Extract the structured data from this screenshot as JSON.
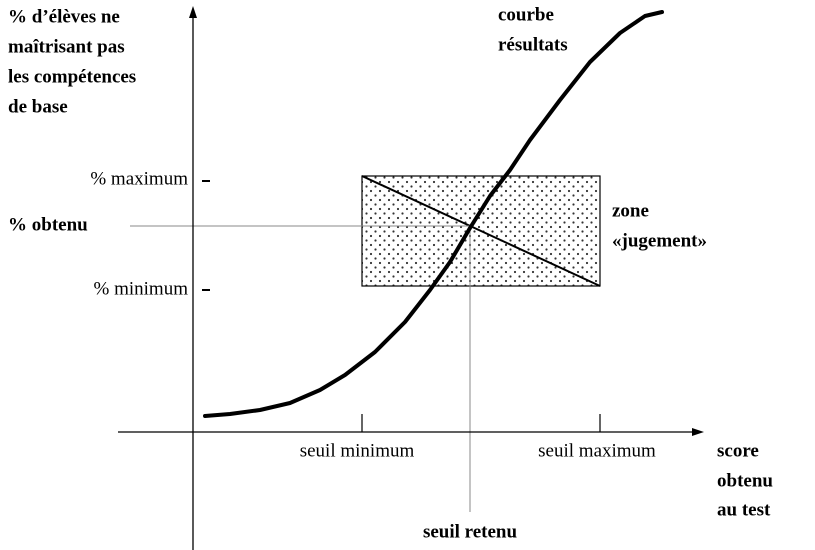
{
  "y_axis_label": [
    "% d’élèves ne",
    "maîtrisant pas",
    "les compétences",
    "de base"
  ],
  "curve_label": [
    "courbe",
    "résultats"
  ],
  "y_levels": {
    "maximum": "% maximum",
    "obtained": "% obtenu",
    "minimum": "% minimum"
  },
  "zone_label": [
    "zone",
    "«jugement»"
  ],
  "x_levels": {
    "minimum": "seuil minimum",
    "maximum": "seuil maximum",
    "chosen": "seuil retenu"
  },
  "x_axis_label": [
    "score",
    "obtenu",
    "au test"
  ]
}
